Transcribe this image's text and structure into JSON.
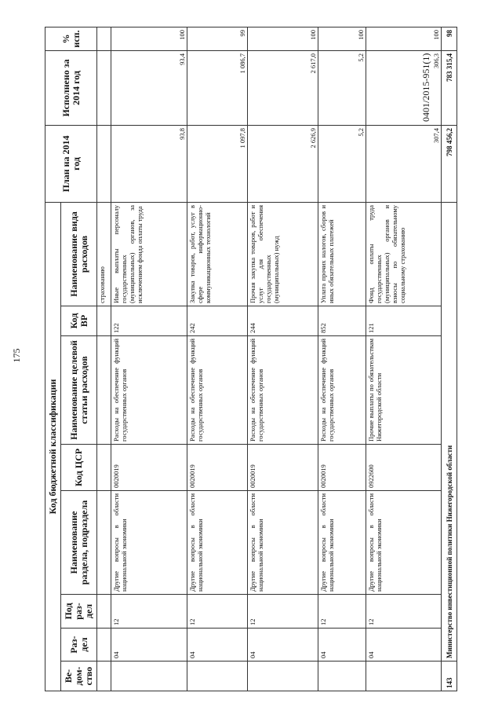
{
  "page_number": "175",
  "header": {
    "group": "Код бюджетной классификации",
    "columns": [
      "Ве-дом-ство",
      "Раз-дел",
      "Под раз-дел",
      "Наименование раздела, подраздела",
      "Код ЦСР",
      "Наименование целевой статьи расходов",
      "Код ВР",
      "Наименование вида расходов",
      "План на 2014 год",
      "Исполнено за 2014 год",
      "% исп."
    ]
  },
  "carryover_text": "страхованию",
  "rows": [
    {
      "ved": "",
      "razdel": "04",
      "podrazdel": "12",
      "razdel_name": "Другие вопросы в области национальной экономики",
      "csr": "0020019",
      "csr_name": "Расходы на обеспечение функций государственных органов",
      "vr": "122",
      "vr_name": "Иные выплаты персоналу государственных (муниципальных) органов, за исключением фонда оплаты труда",
      "plan": "93,8",
      "fact": "93,4",
      "pct": "100"
    },
    {
      "ved": "",
      "razdel": "04",
      "podrazdel": "12",
      "razdel_name": "Другие вопросы в области национальной экономики",
      "csr": "0020019",
      "csr_name": "Расходы на обеспечение функций государственных органов",
      "vr": "242",
      "vr_name": "Закупка товаров, работ, услуг в сфере информационно-коммуникационных технологий",
      "plan": "1 097,8",
      "fact": "1 086,7",
      "pct": "99"
    },
    {
      "ved": "",
      "razdel": "04",
      "podrazdel": "12",
      "razdel_name": "Другие вопросы в области национальной экономики",
      "csr": "0020019",
      "csr_name": "Расходы на обеспечение функций государственных органов",
      "vr": "244",
      "vr_name": "Прочая закупка товаров, работ и услуг для обеспечения государственных (муниципальных) нужд",
      "plan": "2 626,9",
      "fact": "2 617,0",
      "pct": "100"
    },
    {
      "ved": "",
      "razdel": "04",
      "podrazdel": "12",
      "razdel_name": "Другие вопросы в области национальной экономики",
      "csr": "0020019",
      "csr_name": "Расходы на обеспечение функций государственных органов",
      "vr": "852",
      "vr_name": "Уплата прочих налогов, сборов и иных обязательных платежей",
      "plan": "5,2",
      "fact": "5,2",
      "pct": "100"
    },
    {
      "ved": "",
      "razdel": "04",
      "podrazdel": "12",
      "razdel_name": "Другие вопросы в области национальной экономики",
      "csr": "0922600",
      "csr_name": "Прочие выплаты по обязательствам Нижегородской области",
      "vr": "121",
      "vr_name": "Фонд оплаты труда государственных (муниципальных) органов и взносы по обязательному социальному страхованию",
      "plan": "307,4",
      "fact": "306,3",
      "pct": "100"
    }
  ],
  "total": {
    "ved": "143",
    "name": "Министерство инвестиционной политики Нижегородской области",
    "plan": "798 456,2",
    "fact": "783 315,4",
    "pct": "98"
  },
  "footer_code": "0401/2015-951(1)"
}
